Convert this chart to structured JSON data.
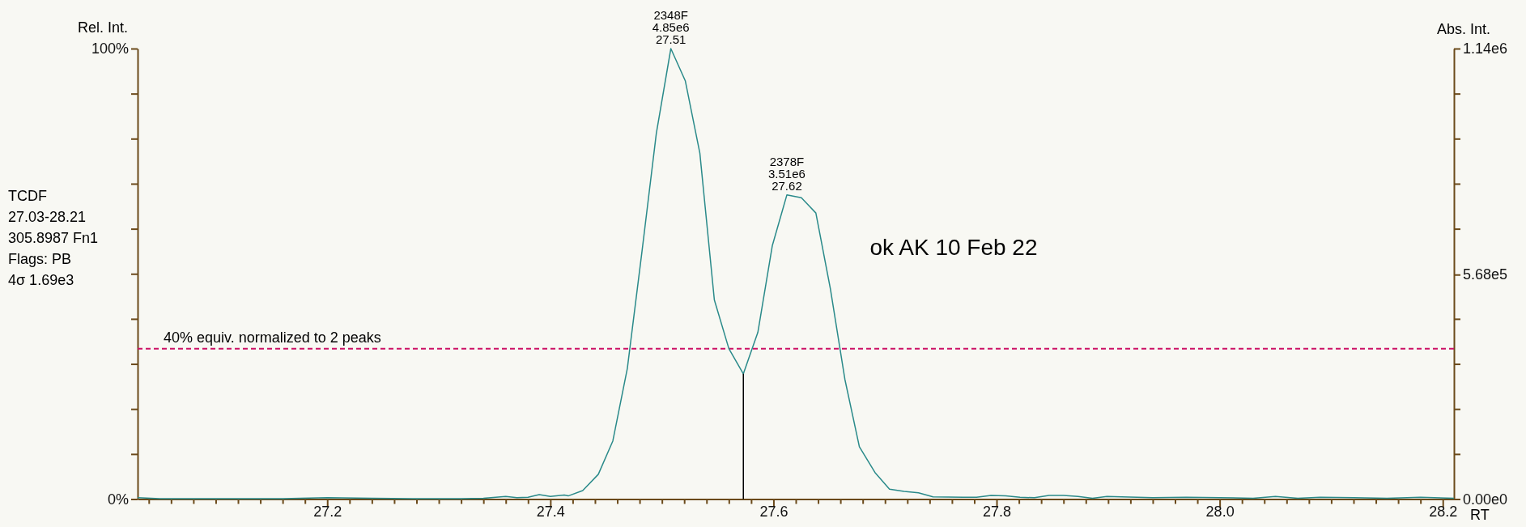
{
  "chart_data": {
    "type": "line",
    "xlabel": "RT",
    "ylabel": "Rel. Int.",
    "y2label": "Abs. Int.",
    "xlim": [
      27.03,
      28.21
    ],
    "xticks": [
      {
        "value": 27.04,
        "label": null
      },
      {
        "value": 27.06,
        "label": null
      },
      {
        "value": 27.08,
        "label": null
      },
      {
        "value": 27.1,
        "label": null
      },
      {
        "value": 27.12,
        "label": null
      },
      {
        "value": 27.14,
        "label": null
      },
      {
        "value": 27.16,
        "label": null
      },
      {
        "value": 27.18,
        "label": null
      },
      {
        "value": 27.2,
        "label": "27.2"
      },
      {
        "value": 27.22,
        "label": null
      },
      {
        "value": 27.24,
        "label": null
      },
      {
        "value": 27.26,
        "label": null
      },
      {
        "value": 27.28,
        "label": null
      },
      {
        "value": 27.3,
        "label": null
      },
      {
        "value": 27.32,
        "label": null
      },
      {
        "value": 27.34,
        "label": null
      },
      {
        "value": 27.36,
        "label": null
      },
      {
        "value": 27.38,
        "label": null
      },
      {
        "value": 27.4,
        "label": "27.4"
      },
      {
        "value": 27.42,
        "label": null
      },
      {
        "value": 27.44,
        "label": null
      },
      {
        "value": 27.46,
        "label": null
      },
      {
        "value": 27.48,
        "label": null
      },
      {
        "value": 27.5,
        "label": null
      },
      {
        "value": 27.52,
        "label": null
      },
      {
        "value": 27.54,
        "label": null
      },
      {
        "value": 27.56,
        "label": null
      },
      {
        "value": 27.58,
        "label": null
      },
      {
        "value": 27.6,
        "label": "27.6"
      },
      {
        "value": 27.62,
        "label": null
      },
      {
        "value": 27.64,
        "label": null
      },
      {
        "value": 27.66,
        "label": null
      },
      {
        "value": 27.68,
        "label": null
      },
      {
        "value": 27.7,
        "label": null
      },
      {
        "value": 27.72,
        "label": null
      },
      {
        "value": 27.74,
        "label": null
      },
      {
        "value": 27.76,
        "label": null
      },
      {
        "value": 27.78,
        "label": null
      },
      {
        "value": 27.8,
        "label": "27.8"
      },
      {
        "value": 27.82,
        "label": null
      },
      {
        "value": 27.84,
        "label": null
      },
      {
        "value": 27.86,
        "label": null
      },
      {
        "value": 27.88,
        "label": null
      },
      {
        "value": 27.9,
        "label": null
      },
      {
        "value": 27.92,
        "label": null
      },
      {
        "value": 27.94,
        "label": null
      },
      {
        "value": 27.96,
        "label": null
      },
      {
        "value": 27.98,
        "label": null
      },
      {
        "value": 28.0,
        "label": "28.0"
      },
      {
        "value": 28.02,
        "label": null
      },
      {
        "value": 28.04,
        "label": null
      },
      {
        "value": 28.06,
        "label": null
      },
      {
        "value": 28.08,
        "label": null
      },
      {
        "value": 28.1,
        "label": null
      },
      {
        "value": 28.12,
        "label": null
      },
      {
        "value": 28.14,
        "label": null
      },
      {
        "value": 28.16,
        "label": null
      },
      {
        "value": 28.18,
        "label": null
      },
      {
        "value": 28.2,
        "label": "28.2"
      }
    ],
    "ylim": [
      0,
      100
    ],
    "yticks": [
      {
        "value": 0,
        "label": "0%"
      },
      {
        "value": 10,
        "label": null
      },
      {
        "value": 20,
        "label": null
      },
      {
        "value": 30,
        "label": null
      },
      {
        "value": 40,
        "label": null
      },
      {
        "value": 50,
        "label": null
      },
      {
        "value": 60,
        "label": null
      },
      {
        "value": 70,
        "label": null
      },
      {
        "value": 80,
        "label": null
      },
      {
        "value": 90,
        "label": null
      },
      {
        "value": 100,
        "label": "100%"
      }
    ],
    "y2lim": [
      0,
      1140000
    ],
    "y2ticks": [
      {
        "value": 0,
        "label": "0.00e0"
      },
      {
        "value": 114000,
        "label": null
      },
      {
        "value": 228000,
        "label": null
      },
      {
        "value": 342000,
        "label": null
      },
      {
        "value": 456000,
        "label": null
      },
      {
        "value": 568000,
        "label": "5.68e5"
      },
      {
        "value": 684000,
        "label": null
      },
      {
        "value": 798000,
        "label": null
      },
      {
        "value": 912000,
        "label": null
      },
      {
        "value": 1026000,
        "label": null
      },
      {
        "value": 1140000,
        "label": "1.14e6"
      }
    ],
    "grid": false,
    "marker": "none",
    "series": [
      {
        "color": "#2a8a8a",
        "x": [
          27.03,
          27.05,
          27.08,
          27.12,
          27.16,
          27.2,
          27.24,
          27.28,
          27.32,
          27.34,
          27.36,
          27.37,
          27.38,
          27.39,
          27.4,
          27.4125,
          27.416,
          27.429,
          27.443,
          27.456,
          27.469,
          27.482,
          27.495,
          27.508,
          27.521,
          27.534,
          27.547,
          27.56,
          27.573,
          27.586,
          27.599,
          27.612,
          27.625,
          27.638,
          27.651,
          27.664,
          27.677,
          27.691,
          27.704,
          27.717,
          27.73,
          27.743,
          27.77,
          27.782,
          27.795,
          27.808,
          27.821,
          27.834,
          27.847,
          27.86,
          27.873,
          27.886,
          27.899,
          27.912,
          27.94,
          27.97,
          28.0,
          28.03,
          28.05,
          28.07,
          28.09,
          28.12,
          28.15,
          28.18,
          28.21
        ],
        "values": [
          0.3,
          0.1,
          0.1,
          0.1,
          0.1,
          0.3,
          0.2,
          0.1,
          0.1,
          0.2,
          0.6,
          0.3,
          0.4,
          1.0,
          0.6,
          0.9,
          0.7,
          1.9,
          5.5,
          12.9,
          29.0,
          54.7,
          81.2,
          100,
          92.8,
          76.8,
          44.2,
          33.4,
          27.8,
          37.0,
          56.3,
          67.5,
          66.9,
          63.5,
          46.7,
          26.6,
          11.6,
          5.9,
          2.2,
          1.7,
          1.4,
          0.5,
          0.4,
          0.4,
          0.8,
          0.7,
          0.4,
          0.3,
          0.8,
          0.8,
          0.6,
          0.2,
          0.6,
          0.5,
          0.3,
          0.4,
          0.3,
          0.2,
          0.6,
          0.2,
          0.4,
          0.3,
          0.2,
          0.4,
          0.2
        ]
      },
      {
        "color": "#000000",
        "x": [
          27.573,
          27.573
        ],
        "values": [
          0,
          27.8
        ]
      }
    ],
    "ref_lines": [
      {
        "axis": "y",
        "value": 33.4,
        "label": "40% equiv. normalized to 2 peaks",
        "color": "#cc1166",
        "line_style": "dashed"
      }
    ],
    "annotations": [
      {
        "text": "2348F\n4.85e6\n27.51",
        "x": 27.508,
        "y": 100
      },
      {
        "text": "2378F\n3.51e6\n27.62",
        "x": 27.612,
        "y": 67.5
      },
      "TCDF\n27.03-28.21\n305.8987 Fn1\nFlags: PB\n4σ 1.69e3",
      "ok AK 10 Feb 22"
    ]
  }
}
